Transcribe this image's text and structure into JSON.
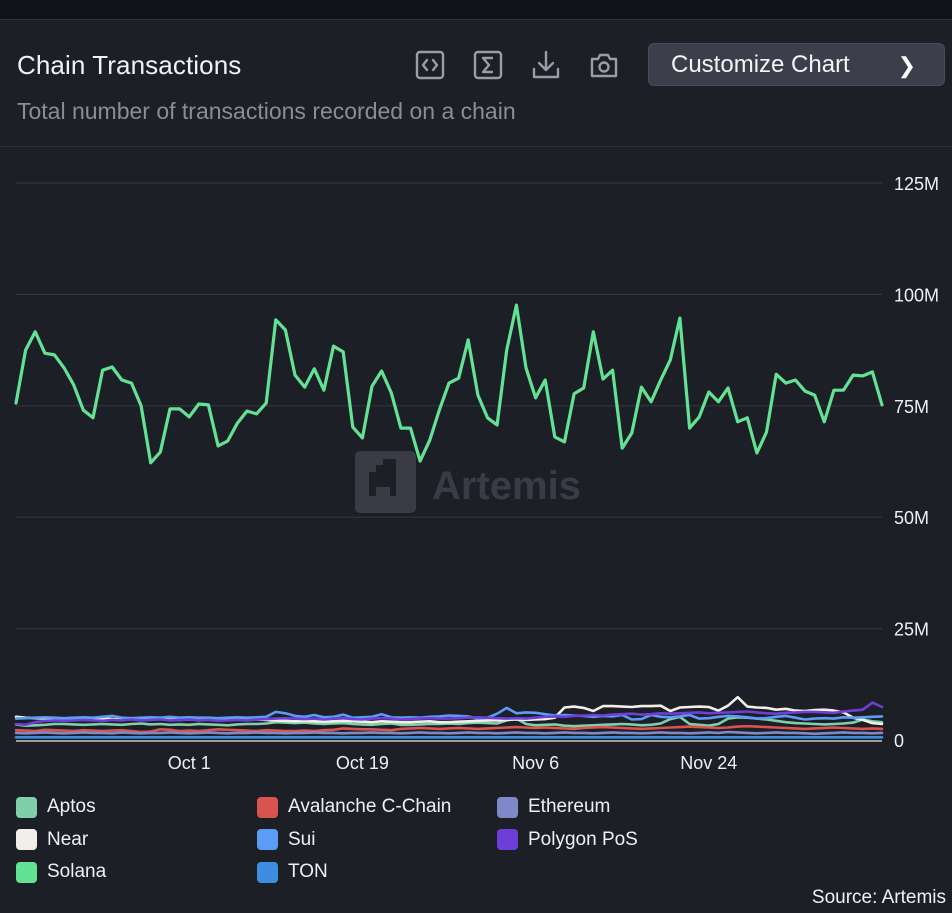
{
  "header": {
    "title": "Chain Transactions",
    "subtitle": "Total number of transactions recorded on a chain",
    "customize_label": "Customize Chart",
    "icons": [
      "embed-code-icon",
      "sum-sigma-icon",
      "download-icon",
      "camera-icon"
    ]
  },
  "watermark": "Artemis",
  "source": "Source: Artemis",
  "chart_data": {
    "type": "line",
    "title": "Chain Transactions",
    "subtitle": "Total number of transactions recorded on a chain",
    "xlabel": "",
    "ylabel": "",
    "ylim": [
      0,
      125000000
    ],
    "y_ticks": [
      0,
      25000000,
      50000000,
      75000000,
      100000000,
      125000000
    ],
    "y_tick_labels": [
      "0",
      "25M",
      "50M",
      "75M",
      "100M",
      "125M"
    ],
    "x_range_days": [
      0,
      90
    ],
    "x_ticks_day_index": [
      18,
      36,
      54,
      72
    ],
    "x_tick_labels": [
      "Oct 1",
      "Oct 19",
      "Nov 6",
      "Nov 24"
    ],
    "grid": true,
    "legend_position": "bottom",
    "units": "millions of transactions",
    "series": [
      {
        "name": "Aptos",
        "color": "#7fcfa8",
        "values": [
          3.5,
          3.2,
          3.3,
          3.4,
          3.6,
          3.6,
          3.5,
          3.4,
          3.5,
          3.6,
          3.5,
          3.4,
          3.6,
          3.7,
          3.5,
          3.6,
          3.4,
          3.5,
          3.4,
          3.6,
          3.5,
          3.4,
          3.3,
          3.5,
          3.6,
          3.6,
          3.7,
          4.0,
          3.9,
          3.8,
          3.9,
          3.7,
          3.6,
          3.7,
          3.8,
          3.6,
          3.5,
          3.4,
          3.6,
          3.7,
          3.4,
          3.4,
          3.5,
          3.6,
          3.6,
          3.7,
          3.6,
          3.8,
          3.9,
          3.8,
          3.7,
          4.4,
          4.8,
          3.6,
          3.3,
          3.4,
          3.5,
          3.2,
          3.1,
          3.2,
          3.3,
          3.4,
          3.5,
          3.6,
          3.5,
          3.3,
          3.4,
          3.7,
          4.7,
          5.2,
          3.6,
          3.4,
          3.2,
          3.6,
          4.8,
          5.1,
          5.0,
          4.8,
          4.6,
          4.3,
          4.0,
          3.8,
          3.7,
          3.6,
          3.5,
          3.6,
          3.7,
          3.9,
          4.6,
          4.2,
          4.0
        ]
      },
      {
        "name": "Avalanche C-Chain",
        "color": "#d9534f",
        "values": [
          2.2,
          2.1,
          2.0,
          2.3,
          2.2,
          2.1,
          2.0,
          2.2,
          2.1,
          2.0,
          2.1,
          2.2,
          2.0,
          1.8,
          1.9,
          2.4,
          2.3,
          2.0,
          2.1,
          2.0,
          2.2,
          2.4,
          2.3,
          2.2,
          2.1,
          2.0,
          2.2,
          2.1,
          2.0,
          2.0,
          2.1,
          2.0,
          2.2,
          2.3,
          2.6,
          2.5,
          2.4,
          2.4,
          2.3,
          2.2,
          2.5,
          2.6,
          2.7,
          2.6,
          2.5,
          2.6,
          2.7,
          2.6,
          2.5,
          2.6,
          2.7,
          2.8,
          2.9,
          2.8,
          2.7,
          2.8,
          2.7,
          2.6,
          2.5,
          2.7,
          2.8,
          2.9,
          2.8,
          2.7,
          2.6,
          2.5,
          2.6,
          2.7,
          2.8,
          2.9,
          3.0,
          2.9,
          2.8,
          2.7,
          2.8,
          3.0,
          3.1,
          3.0,
          2.9,
          2.8,
          2.7,
          2.6,
          2.5,
          2.6,
          2.7,
          2.8,
          2.7,
          2.6,
          2.5,
          2.6,
          2.5
        ]
      },
      {
        "name": "Ethereum",
        "color": "#8089c8",
        "values": [
          1.6,
          1.5,
          1.6,
          1.7,
          1.6,
          1.5,
          1.6,
          1.7,
          1.6,
          1.6,
          1.5,
          1.7,
          1.6,
          1.5,
          1.6,
          1.6,
          1.7,
          1.6,
          1.5,
          1.6,
          1.7,
          1.6,
          1.5,
          1.6,
          1.6,
          1.7,
          1.6,
          1.6,
          1.5,
          1.6,
          1.6,
          1.7,
          1.6,
          1.6,
          1.5,
          1.6,
          1.6,
          1.7,
          1.6,
          1.6,
          1.5,
          1.6,
          1.7,
          1.6,
          1.6,
          1.5,
          1.6,
          1.7,
          1.6,
          1.6,
          1.5,
          1.6,
          1.7,
          1.6,
          1.6,
          1.5,
          1.6,
          1.7,
          1.6,
          1.6,
          1.5,
          1.6,
          1.7,
          1.6,
          1.6,
          1.5,
          1.6,
          1.7,
          1.6,
          1.6,
          1.5,
          1.6,
          1.7,
          1.6,
          1.8,
          1.7,
          1.6,
          1.5,
          1.6,
          1.7,
          1.6,
          1.6,
          1.5,
          1.4,
          1.5,
          1.6,
          1.7,
          1.6,
          1.6,
          1.5,
          1.6
        ]
      },
      {
        "name": "Near",
        "color": "#f2efe8",
        "values": [
          5.2,
          5.0,
          4.9,
          4.8,
          4.7,
          4.8,
          4.7,
          4.6,
          4.7,
          4.8,
          4.7,
          4.6,
          4.7,
          4.5,
          4.6,
          4.7,
          4.6,
          4.5,
          4.6,
          4.7,
          4.6,
          4.5,
          4.6,
          4.6,
          4.7,
          4.6,
          4.5,
          4.4,
          4.3,
          4.2,
          4.3,
          4.2,
          4.1,
          4.2,
          4.3,
          4.2,
          4.1,
          4.0,
          4.2,
          4.1,
          4.0,
          4.0,
          4.1,
          4.2,
          4.0,
          4.0,
          4.1,
          4.2,
          4.3,
          4.4,
          4.4,
          4.5,
          4.6,
          4.5,
          4.6,
          4.7,
          5.0,
          7.3,
          7.5,
          7.2,
          6.5,
          7.6,
          7.6,
          7.5,
          7.4,
          7.6,
          7.6,
          7.7,
          6.5,
          7.3,
          7.4,
          7.5,
          7.4,
          6.6,
          7.7,
          9.6,
          7.5,
          7.3,
          7.2,
          6.8,
          7.0,
          6.6,
          6.5,
          6.7,
          6.8,
          6.6,
          6.2,
          5.0,
          4.5,
          3.8,
          3.6
        ]
      },
      {
        "name": "Sui",
        "color": "#5b9cf5",
        "values": [
          4.8,
          4.9,
          5.0,
          5.1,
          5.0,
          4.9,
          5.0,
          5.1,
          5.0,
          5.2,
          5.4,
          5.0,
          4.9,
          5.0,
          5.1,
          5.0,
          5.2,
          5.0,
          5.1,
          5.0,
          5.0,
          4.9,
          5.0,
          5.1,
          5.0,
          5.1,
          5.2,
          6.3,
          6.0,
          5.4,
          5.2,
          5.6,
          5.1,
          5.2,
          5.7,
          5.0,
          5.1,
          5.2,
          5.8,
          5.1,
          5.0,
          5.1,
          5.0,
          5.2,
          5.3,
          5.5,
          5.4,
          5.3,
          4.8,
          5.0,
          5.9,
          7.2,
          6.0,
          6.2,
          6.1,
          5.8,
          5.5,
          5.6,
          5.5,
          5.4,
          5.2,
          5.4,
          5.3,
          5.6,
          4.6,
          4.7,
          5.6,
          5.2,
          5.1,
          5.3,
          5.6,
          4.8,
          4.9,
          5.2,
          5.4,
          5.3,
          5.1,
          4.8,
          4.9,
          5.2,
          5.4,
          5.0,
          4.6,
          4.8,
          4.9,
          4.8,
          5.1,
          5.0,
          5.1,
          5.2,
          5.3
        ]
      },
      {
        "name": "Polygon PoS",
        "color": "#6e3fd8",
        "values": [
          3.6,
          3.4,
          4.0,
          4.3,
          4.4,
          4.3,
          4.4,
          4.5,
          4.4,
          4.3,
          4.5,
          4.4,
          4.6,
          4.4,
          4.5,
          4.6,
          4.4,
          4.5,
          4.6,
          4.4,
          4.5,
          4.3,
          4.4,
          4.5,
          4.4,
          4.6,
          4.7,
          4.8,
          4.9,
          4.8,
          4.7,
          4.8,
          4.6,
          4.8,
          4.9,
          4.7,
          4.6,
          4.8,
          4.9,
          4.8,
          4.6,
          4.7,
          4.8,
          4.9,
          4.8,
          4.8,
          4.9,
          5.0,
          5.1,
          5.0,
          4.9,
          4.8,
          4.9,
          4.8,
          5.0,
          5.2,
          5.3,
          5.2,
          5.4,
          5.5,
          5.6,
          5.5,
          5.7,
          5.8,
          5.9,
          5.7,
          5.8,
          6.0,
          5.9,
          6.0,
          6.1,
          6.2,
          6.0,
          6.1,
          6.2,
          6.3,
          6.4,
          6.2,
          6.0,
          5.9,
          6.1,
          6.2,
          6.3,
          6.3,
          6.2,
          6.1,
          6.4,
          6.6,
          6.8,
          8.4,
          7.4
        ]
      },
      {
        "name": "TON",
        "color": "#3d8de0",
        "values": [
          0.6,
          0.6,
          0.6,
          0.6,
          0.6,
          0.6,
          0.6,
          0.6,
          0.6,
          0.6,
          0.6,
          0.6,
          0.6,
          0.6,
          0.6,
          0.6,
          0.6,
          0.6,
          0.6,
          0.6,
          0.6,
          0.6,
          0.6,
          0.6,
          0.6,
          0.6,
          0.6,
          0.6,
          0.6,
          0.6,
          0.6,
          0.6,
          0.6,
          0.6,
          0.6,
          0.6,
          0.6,
          0.6,
          0.6,
          0.6,
          0.6,
          0.6,
          0.6,
          0.6,
          0.6,
          0.6,
          0.6,
          0.6,
          0.6,
          0.6,
          0.6,
          0.6,
          0.6,
          0.6,
          0.6,
          0.6,
          0.6,
          0.6,
          0.6,
          0.6,
          0.6,
          0.6,
          0.6,
          0.6,
          0.6,
          0.6,
          0.6,
          0.6,
          0.6,
          0.6,
          0.6,
          0.6,
          0.6,
          0.6,
          0.6,
          0.6,
          0.6,
          0.6,
          0.6,
          0.6,
          0.6,
          0.6,
          0.6,
          0.6,
          0.6,
          0.6,
          0.6,
          0.6,
          0.6,
          0.6,
          0.6
        ]
      },
      {
        "name": "Solana",
        "color": "#62e292",
        "values": [
          75.6,
          87.5,
          91.6,
          86.8,
          86.4,
          83.5,
          79.7,
          74.0,
          72.3,
          83.0,
          83.7,
          80.8,
          80.1,
          75.0,
          62.2,
          64.6,
          74.3,
          74.3,
          72.5,
          75.4,
          75.2,
          66.0,
          67.1,
          71.1,
          73.8,
          73.2,
          75.6,
          94.3,
          92.0,
          81.9,
          79.2,
          83.3,
          78.5,
          88.4,
          87.1,
          70.2,
          67.8,
          79.4,
          82.8,
          77.9,
          70.0,
          70.0,
          62.6,
          67.3,
          74.1,
          80.1,
          81.2,
          89.8,
          77.4,
          72.3,
          70.7,
          87.5,
          97.6,
          83.5,
          76.8,
          80.8,
          68.0,
          66.9,
          77.7,
          79.0,
          91.6,
          81.0,
          83.0,
          65.5,
          68.9,
          79.2,
          75.9,
          80.8,
          85.3,
          94.7,
          70.0,
          72.5,
          78.1,
          75.9,
          79.0,
          71.4,
          72.3,
          64.4,
          69.1,
          82.1,
          80.1,
          80.8,
          78.3,
          77.4,
          71.4,
          78.5,
          78.5,
          81.9,
          81.7,
          82.6,
          75.2
        ]
      }
    ]
  },
  "legend": [
    {
      "name": "Aptos",
      "color": "#7fcfa8"
    },
    {
      "name": "Near",
      "color": "#f2efe8"
    },
    {
      "name": "Solana",
      "color": "#62e292"
    },
    {
      "name": "Avalanche C-Chain",
      "color": "#d9534f"
    },
    {
      "name": "Sui",
      "color": "#5b9cf5"
    },
    {
      "name": "TON",
      "color": "#3d8de0"
    },
    {
      "name": "Ethereum",
      "color": "#8089c8"
    },
    {
      "name": "Polygon PoS",
      "color": "#6e3fd8"
    }
  ]
}
